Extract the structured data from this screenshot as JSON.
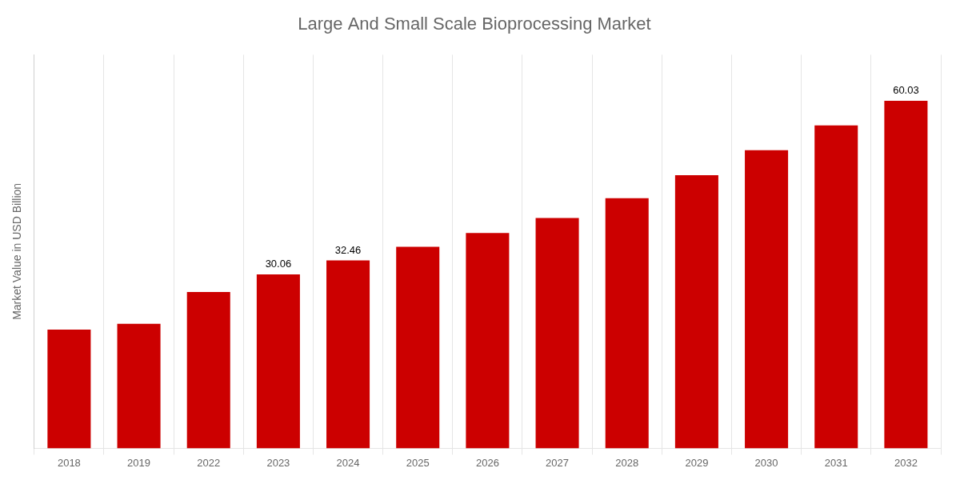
{
  "chart_data": {
    "type": "bar",
    "title": "Large And Small Scale Bioprocessing Market",
    "ylabel": "Market Value in USD Billion",
    "categories": [
      "2018",
      "2019",
      "2022",
      "2023",
      "2024",
      "2025",
      "2026",
      "2027",
      "2028",
      "2029",
      "2030",
      "2031",
      "2032"
    ],
    "values": [
      20.5,
      21.5,
      27.0,
      30.06,
      32.46,
      34.8,
      37.2,
      39.8,
      43.2,
      47.2,
      51.5,
      55.8,
      60.03
    ],
    "value_labels": [
      null,
      null,
      null,
      "30.06",
      "32.46",
      null,
      null,
      null,
      null,
      null,
      null,
      null,
      "60.03"
    ],
    "data_labels": true,
    "color": "#cc0000",
    "ylim": [
      0,
      68
    ],
    "grid": "x",
    "tick_labels": "x"
  }
}
